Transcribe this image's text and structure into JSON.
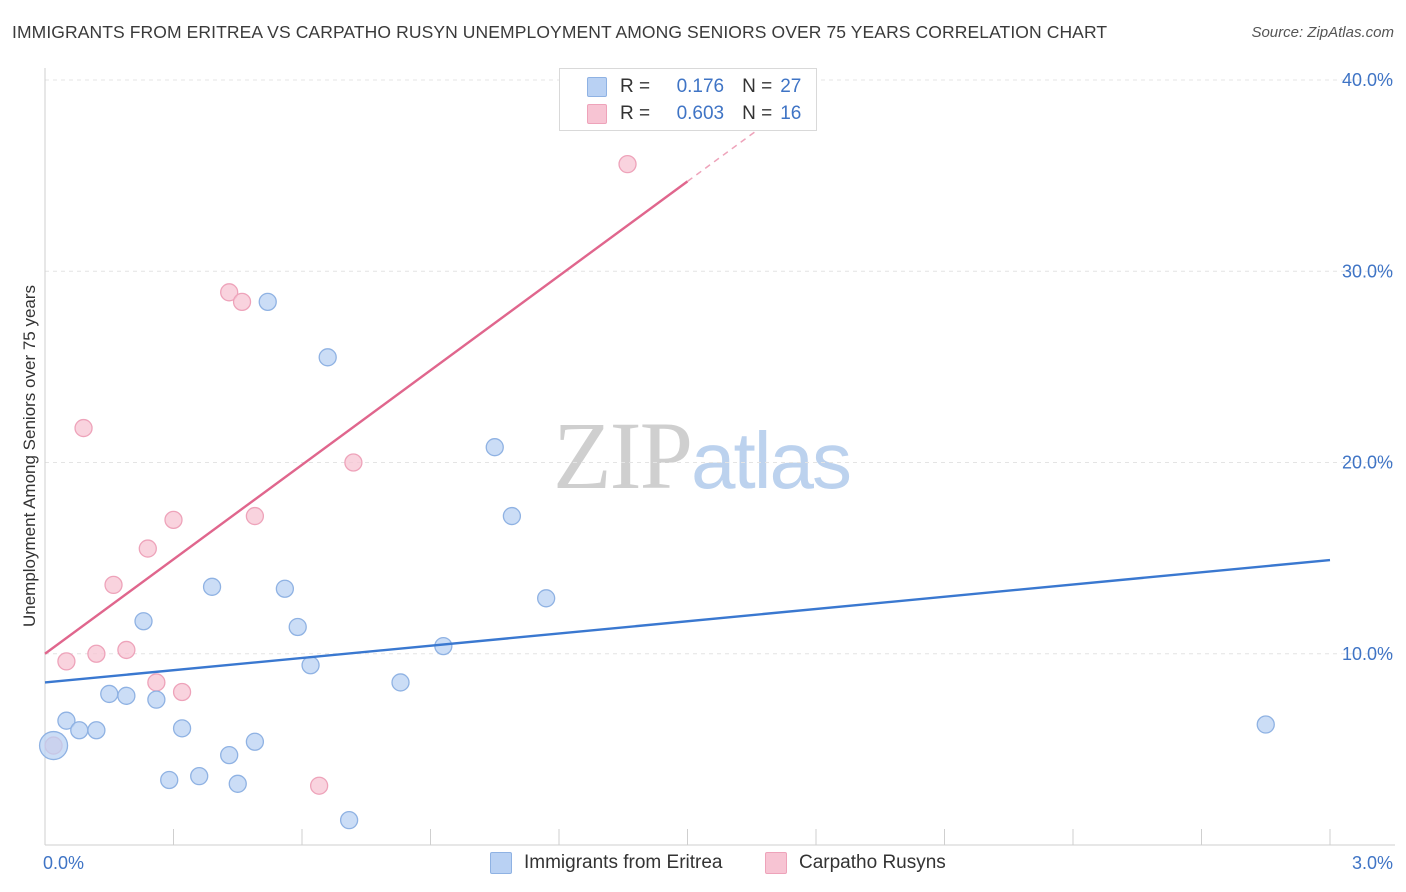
{
  "header": {
    "title": "IMMIGRANTS FROM ERITREA VS CARPATHO RUSYN UNEMPLOYMENT AMONG SENIORS OVER 75 YEARS CORRELATION CHART",
    "source": "Source: ZipAtlas.com"
  },
  "watermark": {
    "zip": "ZIP",
    "atlas": "atlas"
  },
  "legend_top": {
    "rows": [
      {
        "r_label": "R =",
        "r_value": "0.176",
        "n_label": "N =",
        "n_value": "27"
      },
      {
        "r_label": "R =",
        "r_value": "0.603",
        "n_label": "N =",
        "n_value": "16"
      }
    ]
  },
  "legend_bottom": {
    "items": [
      "Immigrants from Eritrea",
      "Carpatho Rusyns"
    ]
  },
  "colors": {
    "blue_fill": "#b9d1f3",
    "blue_stroke": "#8fb2e3",
    "blue_line": "#3a78d0",
    "pink_fill": "#f7c4d3",
    "pink_stroke": "#eea3ba",
    "pink_line": "#e0668d",
    "tick_text": "#3f74c5",
    "grid": "#e4e4e4"
  },
  "chart_data": {
    "type": "scatter",
    "title": "IMMIGRANTS FROM ERITREA VS CARPATHO RUSYN UNEMPLOYMENT AMONG SENIORS OVER 75 YEARS CORRELATION CHART",
    "xlabel": "",
    "ylabel": "Unemployment Among Seniors over 75 years",
    "xlim": [
      0,
      3.0
    ],
    "ylim": [
      0,
      40
    ],
    "x_tick_labels": [
      "0.0%",
      "3.0%"
    ],
    "y_ticks": [
      10,
      20,
      30,
      40
    ],
    "y_tick_labels": [
      "10.0%",
      "20.0%",
      "30.0%",
      "40.0%"
    ],
    "grid": true,
    "legend_position": "top-center",
    "series": [
      {
        "name": "Immigrants from Eritrea",
        "r": 0.176,
        "n": 27,
        "points": [
          {
            "x": 0.02,
            "y": 5.2,
            "big": true
          },
          {
            "x": 0.05,
            "y": 6.5
          },
          {
            "x": 0.08,
            "y": 6.0
          },
          {
            "x": 0.12,
            "y": 6.0
          },
          {
            "x": 0.15,
            "y": 7.9
          },
          {
            "x": 0.19,
            "y": 7.8
          },
          {
            "x": 0.23,
            "y": 11.7
          },
          {
            "x": 0.26,
            "y": 7.6
          },
          {
            "x": 0.29,
            "y": 3.4
          },
          {
            "x": 0.32,
            "y": 6.1
          },
          {
            "x": 0.36,
            "y": 3.6
          },
          {
            "x": 0.39,
            "y": 13.5
          },
          {
            "x": 0.43,
            "y": 4.7
          },
          {
            "x": 0.45,
            "y": 3.2
          },
          {
            "x": 0.49,
            "y": 5.4
          },
          {
            "x": 0.52,
            "y": 28.4
          },
          {
            "x": 0.56,
            "y": 13.4
          },
          {
            "x": 0.59,
            "y": 11.4
          },
          {
            "x": 0.62,
            "y": 9.4
          },
          {
            "x": 0.66,
            "y": 25.5
          },
          {
            "x": 0.71,
            "y": 1.3
          },
          {
            "x": 0.83,
            "y": 8.5
          },
          {
            "x": 0.93,
            "y": 10.4
          },
          {
            "x": 1.05,
            "y": 20.8
          },
          {
            "x": 1.09,
            "y": 17.2
          },
          {
            "x": 1.17,
            "y": 12.9
          },
          {
            "x": 2.85,
            "y": 6.3
          }
        ],
        "trend": {
          "x": [
            0.0,
            3.0
          ],
          "y": [
            8.5,
            14.9
          ]
        }
      },
      {
        "name": "Carpatho Rusyns",
        "r": 0.603,
        "n": 16,
        "points": [
          {
            "x": 0.02,
            "y": 5.2
          },
          {
            "x": 0.05,
            "y": 9.6
          },
          {
            "x": 0.09,
            "y": 21.8
          },
          {
            "x": 0.12,
            "y": 10.0
          },
          {
            "x": 0.16,
            "y": 13.6
          },
          {
            "x": 0.19,
            "y": 10.2
          },
          {
            "x": 0.24,
            "y": 15.5
          },
          {
            "x": 0.26,
            "y": 8.5
          },
          {
            "x": 0.3,
            "y": 17.0
          },
          {
            "x": 0.32,
            "y": 8.0
          },
          {
            "x": 0.43,
            "y": 28.9
          },
          {
            "x": 0.46,
            "y": 28.4
          },
          {
            "x": 0.49,
            "y": 17.2
          },
          {
            "x": 0.64,
            "y": 3.1
          },
          {
            "x": 0.72,
            "y": 20.0
          },
          {
            "x": 1.36,
            "y": 35.6
          }
        ],
        "trend": {
          "x": [
            0.0,
            1.5
          ],
          "y": [
            10.0,
            34.7
          ],
          "dashed_to": {
            "x": 1.81,
            "y": 39.8
          }
        }
      }
    ]
  }
}
